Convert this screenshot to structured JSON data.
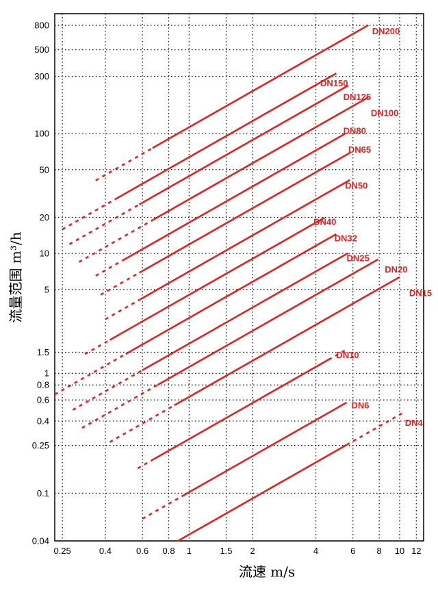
{
  "chart_data": {
    "type": "line",
    "xlabel": "流速 m/s",
    "ylabel": "流量范围 m³/h",
    "x_scale": "log",
    "y_scale": "log",
    "xlim": [
      0.23,
      13
    ],
    "ylim": [
      0.04,
      1000
    ],
    "grid": true,
    "x_ticks": [
      0.25,
      0.4,
      0.6,
      0.8,
      1,
      1.5,
      2,
      4,
      6,
      8,
      10,
      12
    ],
    "x_tick_labels": [
      "0.25",
      "0.4",
      "0.6",
      "0.8",
      "1",
      "1.5",
      "2",
      "4",
      "6",
      "8",
      "10",
      "12"
    ],
    "y_ticks": [
      0.04,
      0.1,
      0.25,
      0.4,
      0.6,
      0.8,
      1,
      1.5,
      5,
      10,
      20,
      50,
      100,
      300,
      500,
      800
    ],
    "y_tick_labels": [
      "0.04",
      "0.1",
      "0.25",
      "0.4",
      "0.6",
      "0.8",
      "1",
      "1.5",
      "5",
      "10",
      "20",
      "50",
      "100",
      "300",
      "500",
      "800"
    ],
    "colors": {
      "series": "#e62020",
      "grid": "#000000"
    },
    "series": [
      {
        "name": "DN200",
        "dashed_from": 0.36,
        "solid_from": 0.67,
        "to": 7.1,
        "y_at_1": 113
      },
      {
        "name": "DN150",
        "dashed_from": 0.25,
        "solid_from": 0.45,
        "to": 5,
        "y_at_1": 63.6
      },
      {
        "name": "DN125",
        "dashed_from": 0.27,
        "solid_from": 0.58,
        "to": 5.7,
        "y_at_1": 44.2
      },
      {
        "name": "DN100",
        "dashed_from": 0.3,
        "solid_from": 0.68,
        "to": 7.1,
        "y_at_1": 28.3
      },
      {
        "name": "DN80",
        "dashed_from": 0.36,
        "solid_from": 0.48,
        "to": 5.5,
        "y_at_1": 18.1
      },
      {
        "name": "DN65",
        "dashed_from": 0.38,
        "solid_from": 0.58,
        "to": 5.8,
        "y_at_1": 11.9
      },
      {
        "name": "DN50",
        "dashed_from": 0.4,
        "solid_from": 0.58,
        "to": 5.8,
        "y_at_1": 7.07
      },
      {
        "name": "DN40",
        "dashed_from": 0.32,
        "solid_from": 0.42,
        "to": 4.4,
        "y_at_1": 4.52
      },
      {
        "name": "DN32",
        "dashed_from": 0.23,
        "solid_from": 0.5,
        "to": 5.0,
        "y_at_1": 2.9
      },
      {
        "name": "DN25",
        "dashed_from": 0.28,
        "solid_from": 0.6,
        "to": 5.7,
        "y_at_1": 1.77
      },
      {
        "name": "DN20",
        "dashed_from": 0.31,
        "solid_from": 0.71,
        "to": 7.9,
        "y_at_1": 1.13
      },
      {
        "name": "DN15",
        "dashed_from": 0.42,
        "solid_from": 0.85,
        "to": 10,
        "y_at_1": 0.636
      },
      {
        "name": "DN10",
        "dashed_from": 0.57,
        "solid_from": 0.68,
        "to": 4.6,
        "y_at_1": 0.283,
        "dashed_after": 4.6,
        "dashed_to": 5.5
      },
      {
        "name": "DN6",
        "dashed_from": 0.6,
        "solid_from": 0.94,
        "to": 5.6,
        "y_at_1": 0.102
      },
      {
        "name": "DN4",
        "solid_from": 0.88,
        "to": 5.6,
        "y_at_1": 0.0452,
        "dashed_after": 5.6,
        "dashed_to": 10.5
      }
    ],
    "series_labels": {
      "DN200": {
        "x": 7.4,
        "y": 720
      },
      "DN150": {
        "x": 4.2,
        "y": 265
      },
      "DN125": {
        "x": 5.4,
        "y": 203
      },
      "DN100": {
        "x": 7.3,
        "y": 150
      },
      "DN80": {
        "x": 5.4,
        "y": 106
      },
      "DN65": {
        "x": 5.7,
        "y": 74
      },
      "DN50": {
        "x": 5.5,
        "y": 37
      },
      "DN40": {
        "x": 3.9,
        "y": 18.5
      },
      "DN32": {
        "x": 4.9,
        "y": 13.5
      },
      "DN25": {
        "x": 5.6,
        "y": 9.2
      },
      "DN20": {
        "x": 8.5,
        "y": 7.4
      },
      "DN15": {
        "x": 11.1,
        "y": 4.7
      },
      "DN10": {
        "x": 5.0,
        "y": 1.43
      },
      "DN6": {
        "x": 5.9,
        "y": 0.545
      },
      "DN4": {
        "x": 10.6,
        "y": 0.388
      }
    }
  }
}
